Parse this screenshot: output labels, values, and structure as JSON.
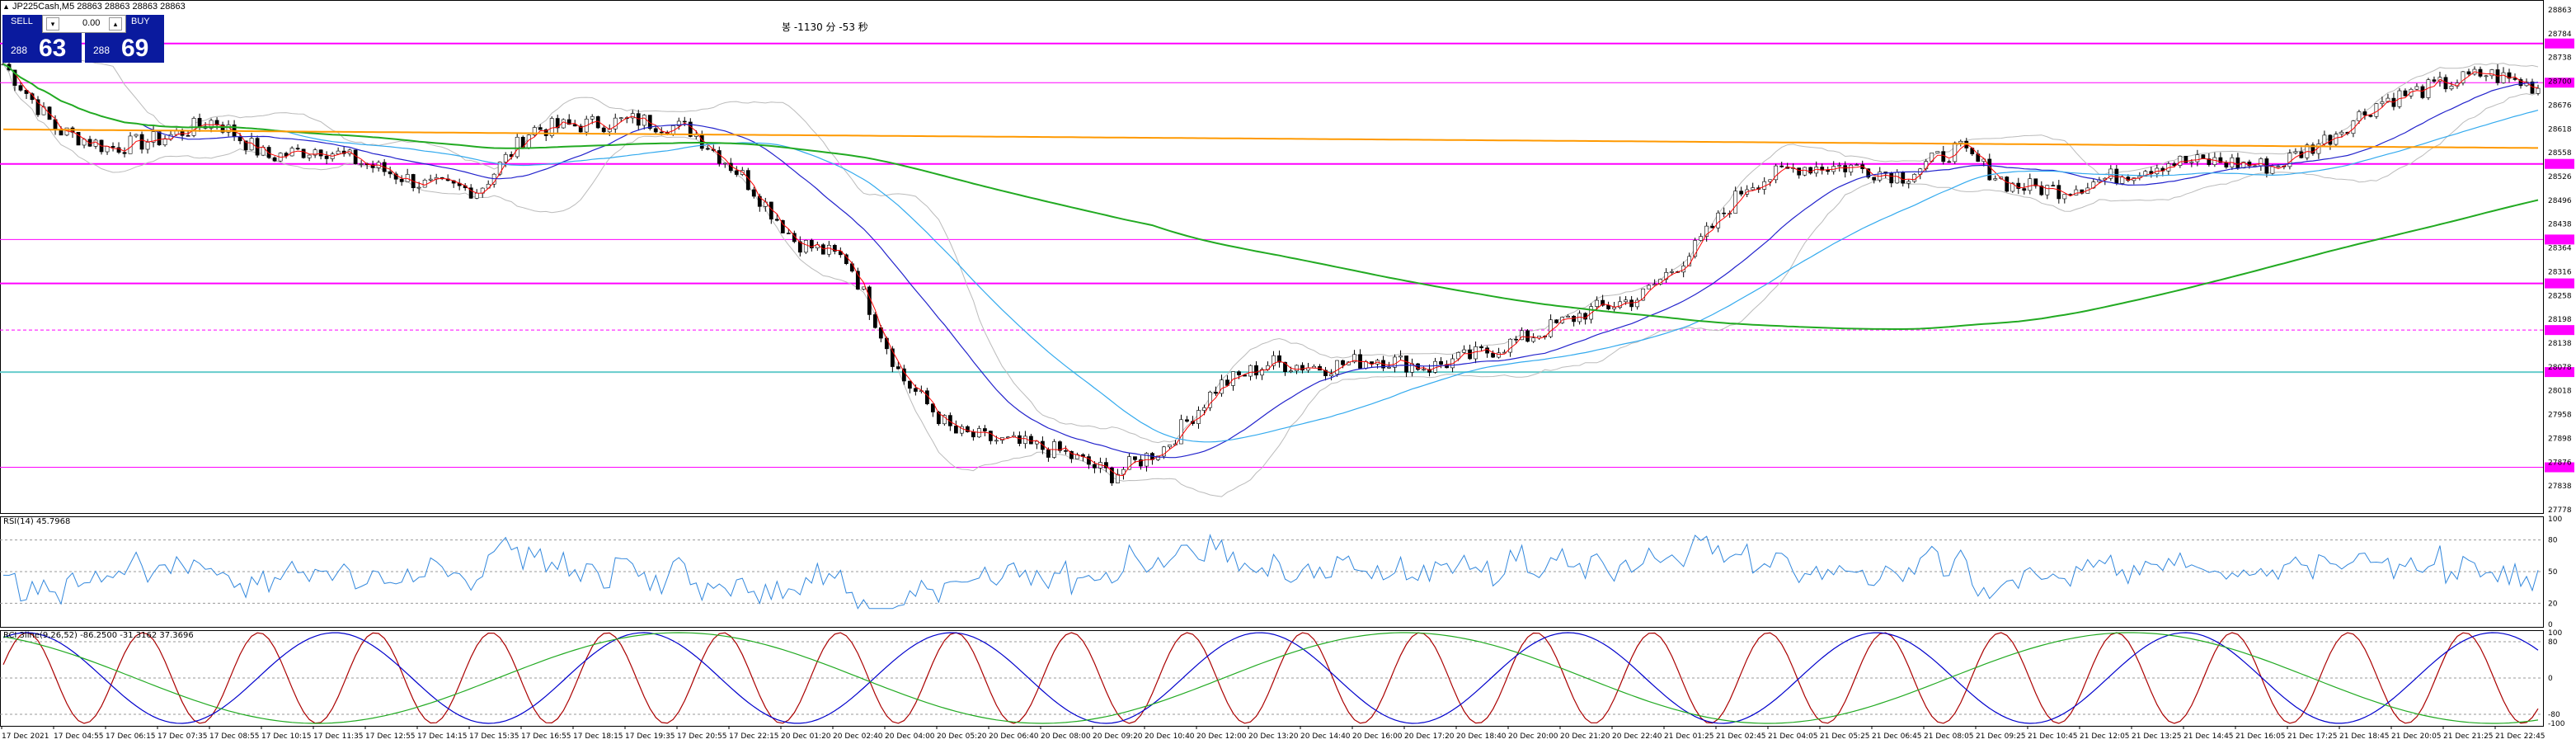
{
  "header": {
    "symbol_line": "JP225Cash,M5  28863 28863 28863 28863",
    "annotation": "봉 -1130 分 -53 秒"
  },
  "trade_panel": {
    "sell_label": "SELL",
    "buy_label": "BUY",
    "lot_value": "0.00",
    "sell_price_small": "288",
    "sell_price_big": "63",
    "buy_price_small": "288",
    "buy_price_big": "69"
  },
  "price_axis": {
    "labels": [
      "28863",
      "28784",
      "28738",
      "28700",
      "28676",
      "28618",
      "28558",
      "28526",
      "28496",
      "28438",
      "28364",
      "28316",
      "28258",
      "28198",
      "28138",
      "28078",
      "28018",
      "27958",
      "27898",
      "27876",
      "27838",
      "27778"
    ],
    "tag_color": "#ff33cc"
  },
  "rsi": {
    "title": "RSI(14) 45.7968",
    "levels": [
      "100",
      "80",
      "50",
      "20",
      "0"
    ]
  },
  "rci": {
    "title": "RCI 3line(9,26,52) -86.2500 -31.3162 37.3696",
    "levels": [
      "100",
      "80",
      "0",
      "-80",
      "-100"
    ]
  },
  "time_axis": {
    "labels": [
      "17 Dec 2021",
      "17 Dec 04:55",
      "17 Dec 06:15",
      "17 Dec 07:35",
      "17 Dec 08:55",
      "17 Dec 10:15",
      "17 Dec 11:35",
      "17 Dec 12:55",
      "17 Dec 14:15",
      "17 Dec 15:35",
      "17 Dec 16:55",
      "17 Dec 18:15",
      "17 Dec 19:35",
      "17 Dec 20:55",
      "17 Dec 22:15",
      "20 Dec 01:20",
      "20 Dec 02:40",
      "20 Dec 04:00",
      "20 Dec 05:20",
      "20 Dec 06:40",
      "20 Dec 08:00",
      "20 Dec 09:20",
      "20 Dec 10:40",
      "20 Dec 12:00",
      "20 Dec 13:20",
      "20 Dec 14:40",
      "20 Dec 16:00",
      "20 Dec 17:20",
      "20 Dec 18:40",
      "20 Dec 20:00",
      "20 Dec 21:20",
      "20 Dec 22:40",
      "21 Dec 01:25",
      "21 Dec 02:45",
      "21 Dec 04:05",
      "21 Dec 05:25",
      "21 Dec 06:45",
      "21 Dec 08:05",
      "21 Dec 09:25",
      "21 Dec 10:45",
      "21 Dec 12:05",
      "21 Dec 13:25",
      "21 Dec 14:45",
      "21 Dec 16:05",
      "21 Dec 17:25",
      "21 Dec 18:45",
      "21 Dec 20:05",
      "21 Dec 21:25",
      "21 Dec 22:45"
    ]
  },
  "colors": {
    "up_candle": "#000000",
    "down_candle": "#000000",
    "ma_fast": "#ff0000",
    "ma_mid": "#2222cc",
    "ma_slow": "#33aaee",
    "ma_long": "#22aa22",
    "ma_orange": "#ff9900",
    "bb": "#bbbbbb",
    "hline_magenta": "#ff00ff",
    "hline_cyan": "#66cccc",
    "rsi_line": "#3388dd",
    "rci_short": "#aa0000",
    "rci_mid": "#0000cc",
    "rci_long": "#22aa22"
  },
  "chart_data": {
    "type": "candlestick",
    "symbol": "JP225Cash",
    "timeframe": "M5",
    "close_path_x": [
      "17 Dec 2021",
      "17 Dec 04:55",
      "17 Dec 06:15",
      "17 Dec 07:35",
      "17 Dec 08:55",
      "17 Dec 10:15",
      "17 Dec 11:35",
      "17 Dec 12:55",
      "17 Dec 14:15",
      "17 Dec 15:35",
      "17 Dec 16:55",
      "17 Dec 18:15",
      "17 Dec 19:35",
      "17 Dec 20:55",
      "17 Dec 22:15",
      "20 Dec 01:20",
      "20 Dec 02:40",
      "20 Dec 04:00",
      "20 Dec 05:20",
      "20 Dec 06:40",
      "20 Dec 08:00",
      "20 Dec 09:20",
      "20 Dec 10:40",
      "20 Dec 12:00",
      "20 Dec 13:20",
      "20 Dec 14:40",
      "20 Dec 16:00",
      "20 Dec 17:20",
      "20 Dec 18:40",
      "20 Dec 20:00",
      "20 Dec 21:20",
      "20 Dec 22:40",
      "21 Dec 01:25",
      "21 Dec 02:45",
      "21 Dec 04:05",
      "21 Dec 05:25",
      "21 Dec 06:45",
      "21 Dec 08:05",
      "21 Dec 09:25",
      "21 Dec 10:45",
      "21 Dec 12:05",
      "21 Dec 13:25",
      "21 Dec 14:45",
      "21 Dec 16:05",
      "21 Dec 17:25",
      "21 Dec 18:45",
      "21 Dec 20:05",
      "21 Dec 21:25",
      "21 Dec 22:45"
    ],
    "close_path_y": [
      28740,
      28600,
      28560,
      28580,
      28620,
      28540,
      28560,
      28520,
      28480,
      28470,
      28600,
      28610,
      28620,
      28600,
      28500,
      28360,
      28320,
      28070,
      27950,
      27930,
      27910,
      27860,
      27920,
      28050,
      28100,
      28090,
      28110,
      28090,
      28120,
      28160,
      28210,
      28240,
      28340,
      28480,
      28520,
      28520,
      28500,
      28560,
      28480,
      28470,
      28500,
      28530,
      28530,
      28520,
      28580,
      28660,
      28690,
      28720,
      28690
    ],
    "price_range": [
      27778,
      28863
    ],
    "horizontal_levels": [
      28784,
      28700,
      28526,
      28364,
      28270,
      28170,
      28080,
      27876
    ],
    "rsi_range": [
      0,
      100
    ],
    "rci_range": [
      -100,
      100
    ]
  }
}
